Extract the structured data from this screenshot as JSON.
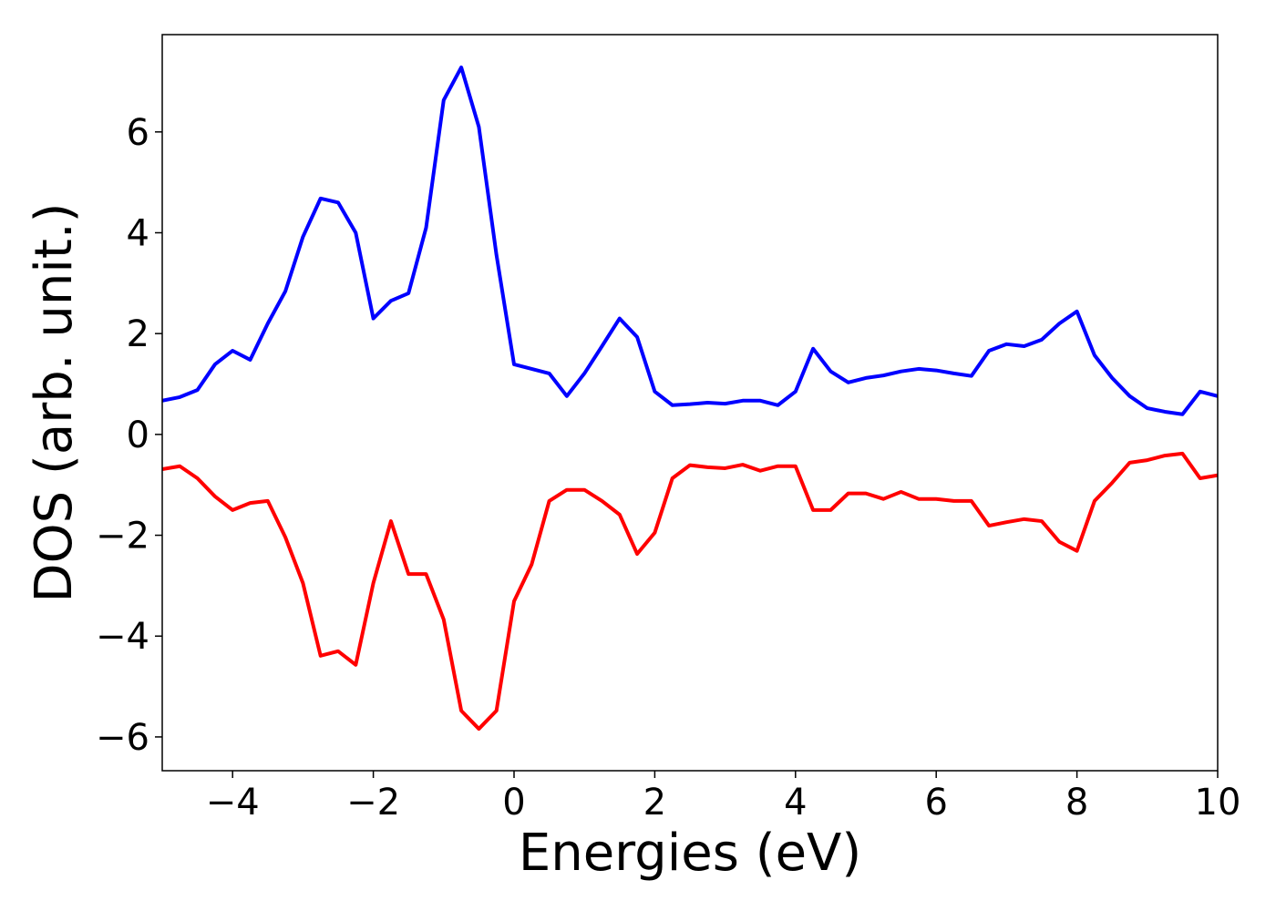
{
  "chart_data": {
    "type": "line",
    "xlabel": "Energies (eV)",
    "ylabel": "DOS (arb. unit.)",
    "x": [
      -5,
      -4.75,
      -4.5,
      -4.25,
      -4,
      -3.75,
      -3.5,
      -3.25,
      -3,
      -2.75,
      -2.5,
      -2.25,
      -2,
      -1.75,
      -1.5,
      -1.25,
      -1,
      -0.75,
      -0.5,
      -0.25,
      0,
      0.25,
      0.5,
      0.75,
      1,
      1.25,
      1.5,
      1.75,
      2,
      2.25,
      2.5,
      2.75,
      3,
      3.25,
      3.5,
      3.75,
      4,
      4.25,
      4.5,
      4.75,
      5,
      5.25,
      5.5,
      5.75,
      6,
      6.25,
      6.5,
      6.75,
      7,
      7.25,
      7.5,
      7.75,
      8,
      8.25,
      8.5,
      8.75,
      9,
      9.25,
      9.5,
      9.75,
      10
    ],
    "series": [
      {
        "color": "#0000ff",
        "values": [
          0.67,
          0.74,
          0.88,
          1.39,
          1.66,
          1.48,
          2.2,
          2.84,
          3.92,
          4.68,
          4.6,
          4.0,
          2.3,
          2.65,
          2.8,
          4.1,
          6.63,
          7.28,
          6.1,
          3.56,
          1.39,
          1.3,
          1.21,
          0.76,
          1.21,
          1.75,
          2.3,
          1.93,
          0.85,
          0.58,
          0.6,
          0.63,
          0.61,
          0.67,
          0.67,
          0.58,
          0.85,
          1.7,
          1.25,
          1.03,
          1.12,
          1.17,
          1.25,
          1.3,
          1.27,
          1.21,
          1.16,
          1.66,
          1.79,
          1.75,
          1.88,
          2.2,
          2.44,
          1.57,
          1.12,
          0.76,
          0.52,
          0.45,
          0.4,
          0.85,
          0.76
        ]
      },
      {
        "color": "#ff0000",
        "values": [
          -0.69,
          -0.63,
          -0.87,
          -1.23,
          -1.5,
          -1.36,
          -1.32,
          -2.04,
          -2.95,
          -4.39,
          -4.3,
          -4.57,
          -2.95,
          -1.72,
          -2.77,
          -2.77,
          -3.67,
          -5.48,
          -5.84,
          -5.48,
          -3.31,
          -2.58,
          -1.32,
          -1.1,
          -1.1,
          -1.32,
          -1.59,
          -2.37,
          -1.95,
          -0.87,
          -0.61,
          -0.65,
          -0.67,
          -0.6,
          -0.72,
          -0.63,
          -0.63,
          -1.5,
          -1.5,
          -1.17,
          -1.17,
          -1.28,
          -1.14,
          -1.28,
          -1.28,
          -1.32,
          -1.32,
          -1.81,
          -1.74,
          -1.68,
          -1.72,
          -2.13,
          -2.31,
          -1.32,
          -0.96,
          -0.56,
          -0.51,
          -0.42,
          -0.38,
          -0.87,
          -0.81
        ]
      }
    ],
    "xlim": [
      -5,
      10
    ],
    "xticks": [
      {
        "value": -4,
        "label": "−4"
      },
      {
        "value": -2,
        "label": "−2"
      },
      0,
      2,
      4,
      6,
      8,
      10
    ],
    "ylim": [
      -6.67,
      7.93
    ],
    "yticks": [
      {
        "value": -6,
        "label": "−6"
      },
      {
        "value": -4,
        "label": "−4"
      },
      {
        "value": -2,
        "label": "−2"
      },
      0,
      2,
      4,
      6
    ],
    "grid": false
  }
}
